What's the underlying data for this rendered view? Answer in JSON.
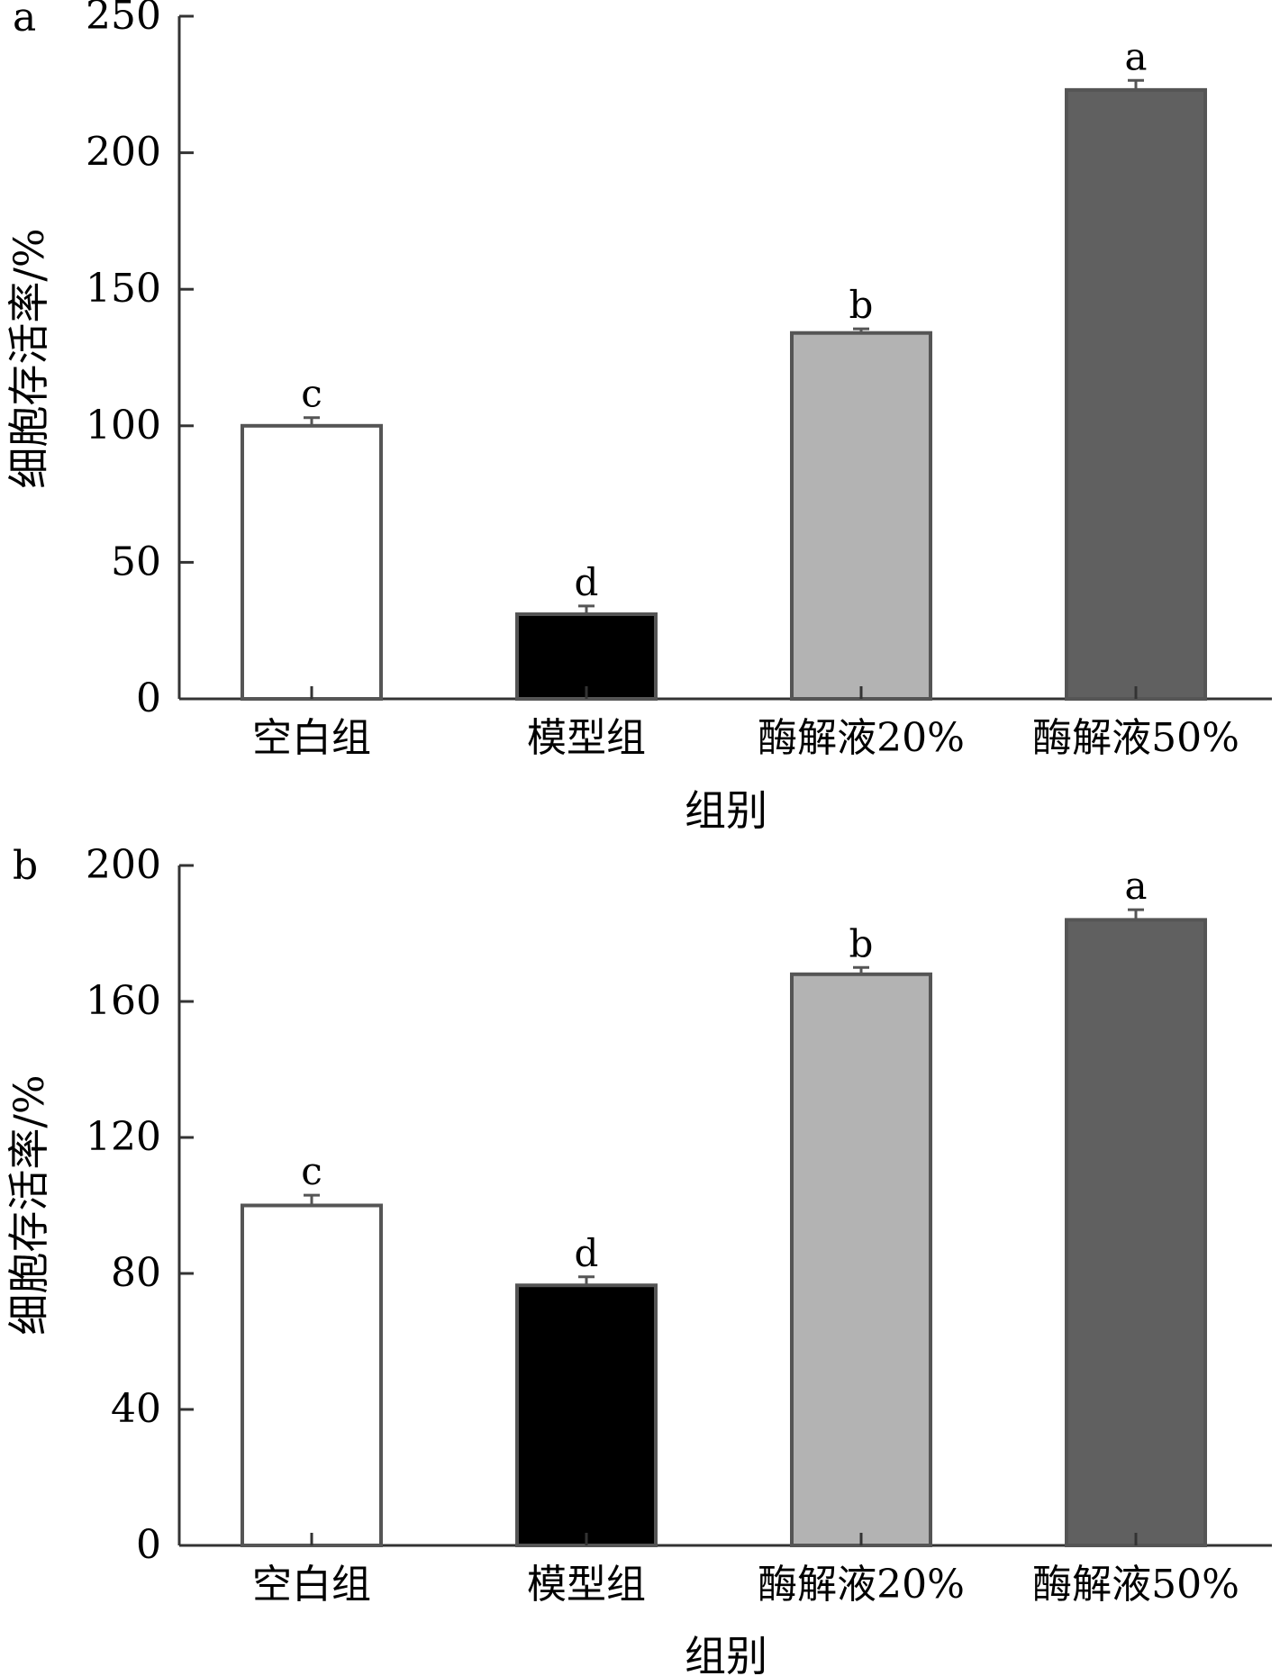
{
  "chart_data": [
    {
      "type": "bar",
      "panel_label": "a",
      "categories": [
        "空白组",
        "模型组",
        "酶解液20%",
        "酶解液50%"
      ],
      "values": [
        100,
        31,
        134,
        223
      ],
      "errors": [
        3,
        3,
        1.5,
        3.5
      ],
      "significance": [
        "c",
        "d",
        "b",
        "a"
      ],
      "colors": [
        "#ffffff",
        "#000000",
        "#b3b3b3",
        "#606060"
      ],
      "xlabel": "组别",
      "ylabel": "细胞存活率/%",
      "ylim": [
        0,
        250
      ],
      "yticks": [
        0,
        50,
        100,
        150,
        200,
        250
      ]
    },
    {
      "type": "bar",
      "panel_label": "b",
      "categories": [
        "空白组",
        "模型组",
        "酶解液20%",
        "酶解液50%"
      ],
      "values": [
        100,
        76.5,
        168,
        184
      ],
      "errors": [
        3,
        2.5,
        2,
        3
      ],
      "significance": [
        "c",
        "d",
        "b",
        "a"
      ],
      "colors": [
        "#ffffff",
        "#000000",
        "#b3b3b3",
        "#606060"
      ],
      "xlabel": "组别",
      "ylabel": "细胞存活率/%",
      "ylim": [
        0,
        200
      ],
      "yticks": [
        0,
        40,
        80,
        120,
        160,
        200
      ]
    }
  ]
}
